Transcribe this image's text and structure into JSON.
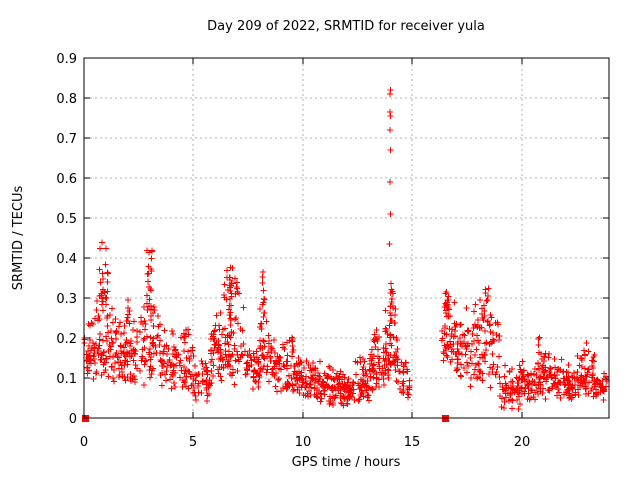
{
  "window": {
    "background": "#ffffff",
    "kind": "gnuplot-style scatter plot"
  },
  "chart_data": {
    "type": "scatter",
    "title": "Day 209 of 2022, SRMTID for receiver yula",
    "xlabel": "GPS time / hours",
    "ylabel": "SRMTID / TECUs",
    "xlim": [
      0,
      24
    ],
    "ylim": [
      0,
      0.9
    ],
    "grid": true,
    "legend": "none",
    "marker": "plus",
    "marker_color": "#ff0000",
    "square_marker_color": "#ff0000",
    "grid_color": "#b0b0b0",
    "axis_color": "#000000",
    "x_ticks": [
      {
        "v": 0,
        "label": "0"
      },
      {
        "v": 5,
        "label": "5"
      },
      {
        "v": 10,
        "label": "10"
      },
      {
        "v": 15,
        "label": "15"
      },
      {
        "v": 20,
        "label": "20"
      }
    ],
    "y_ticks": [
      {
        "v": 0.0,
        "label": "0"
      },
      {
        "v": 0.1,
        "label": "0.1"
      },
      {
        "v": 0.2,
        "label": "0.2"
      },
      {
        "v": 0.3,
        "label": "0.3"
      },
      {
        "v": 0.4,
        "label": "0.4"
      },
      {
        "v": 0.5,
        "label": "0.5"
      },
      {
        "v": 0.6,
        "label": "0.6"
      },
      {
        "v": 0.7,
        "label": "0.7"
      },
      {
        "v": 0.8,
        "label": "0.8"
      },
      {
        "v": 0.9,
        "label": "0.9"
      }
    ],
    "seed": 20220209,
    "density_bands": [
      [
        0.0,
        0.55,
        0.09,
        0.26,
        40
      ],
      [
        0.55,
        1.45,
        0.09,
        0.32,
        60
      ],
      [
        1.45,
        2.55,
        0.08,
        0.27,
        72
      ],
      [
        2.55,
        3.5,
        0.08,
        0.3,
        58
      ],
      [
        3.5,
        4.4,
        0.07,
        0.23,
        52
      ],
      [
        4.4,
        5.0,
        0.05,
        0.23,
        36
      ],
      [
        5.0,
        5.8,
        0.04,
        0.17,
        44
      ],
      [
        5.8,
        7.45,
        0.08,
        0.3,
        115
      ],
      [
        7.45,
        8.05,
        0.07,
        0.2,
        40
      ],
      [
        8.05,
        8.45,
        0.1,
        0.3,
        26
      ],
      [
        8.45,
        9.7,
        0.06,
        0.22,
        85
      ],
      [
        9.7,
        10.6,
        0.05,
        0.16,
        60
      ],
      [
        10.6,
        11.5,
        0.03,
        0.15,
        65
      ],
      [
        11.5,
        12.4,
        0.03,
        0.12,
        68
      ],
      [
        12.4,
        13.1,
        0.04,
        0.17,
        50
      ],
      [
        13.1,
        13.75,
        0.06,
        0.22,
        46
      ],
      [
        13.75,
        14.35,
        0.08,
        0.3,
        55
      ],
      [
        14.35,
        14.9,
        0.05,
        0.16,
        28
      ],
      [
        16.35,
        17.0,
        0.13,
        0.31,
        46
      ],
      [
        17.0,
        17.65,
        0.1,
        0.28,
        40
      ],
      [
        17.65,
        19.0,
        0.07,
        0.3,
        80
      ],
      [
        19.0,
        20.0,
        0.02,
        0.14,
        62
      ],
      [
        20.0,
        20.55,
        0.03,
        0.16,
        34
      ],
      [
        20.55,
        21.5,
        0.04,
        0.19,
        66
      ],
      [
        21.5,
        22.5,
        0.04,
        0.16,
        68
      ],
      [
        22.5,
        23.35,
        0.05,
        0.17,
        58
      ],
      [
        23.35,
        23.9,
        0.04,
        0.13,
        34
      ]
    ],
    "density_peaks": [
      [
        0.9,
        0.35,
        0.28,
        0.445,
        26
      ],
      [
        2.0,
        0.25,
        0.23,
        0.3,
        8
      ],
      [
        3.0,
        0.3,
        0.27,
        0.42,
        18
      ],
      [
        4.7,
        0.15,
        0.2,
        0.24,
        5
      ],
      [
        6.6,
        0.45,
        0.28,
        0.385,
        24
      ],
      [
        7.0,
        0.2,
        0.3,
        0.35,
        6
      ],
      [
        8.2,
        0.15,
        0.25,
        0.375,
        11
      ],
      [
        13.35,
        0.2,
        0.17,
        0.23,
        7
      ],
      [
        14.05,
        0.12,
        0.22,
        0.35,
        16
      ],
      [
        16.6,
        0.2,
        0.25,
        0.33,
        12
      ],
      [
        18.3,
        0.35,
        0.25,
        0.34,
        13
      ],
      [
        20.75,
        0.15,
        0.18,
        0.21,
        3
      ],
      [
        22.9,
        0.25,
        0.15,
        0.19,
        5
      ]
    ],
    "spike_points": [
      [
        13.97,
        0.435
      ],
      [
        14.0,
        0.51
      ],
      [
        13.99,
        0.59
      ],
      [
        14.02,
        0.67
      ],
      [
        13.98,
        0.72
      ],
      [
        14.01,
        0.755
      ],
      [
        13.99,
        0.765
      ],
      [
        13.98,
        0.81
      ],
      [
        14.0,
        0.82
      ]
    ],
    "square_markers": [
      [
        0.05,
        0.0
      ],
      [
        16.5,
        0.0
      ]
    ]
  }
}
